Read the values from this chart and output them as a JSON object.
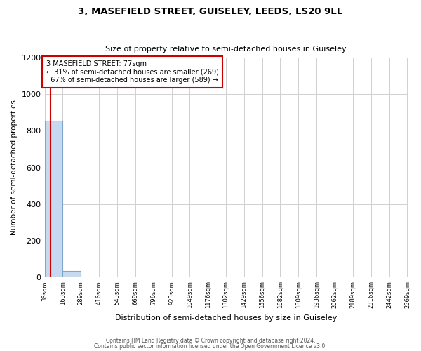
{
  "title": "3, MASEFIELD STREET, GUISELEY, LEEDS, LS20 9LL",
  "subtitle": "Size of property relative to semi-detached houses in Guiseley",
  "xlabel": "Distribution of semi-detached houses by size in Guiseley",
  "ylabel": "Number of semi-detached properties",
  "bin_edges": [
    36,
    163,
    289,
    416,
    543,
    669,
    796,
    923,
    1049,
    1176,
    1302,
    1429,
    1556,
    1682,
    1809,
    1936,
    2062,
    2189,
    2316,
    2442,
    2569
  ],
  "bar_heights": [
    855,
    35,
    0,
    0,
    0,
    0,
    0,
    0,
    0,
    0,
    0,
    0,
    0,
    0,
    0,
    0,
    0,
    0,
    0,
    0
  ],
  "bar_color": "#c6d9f0",
  "bar_edge_color": "#7da6c8",
  "property_size": 77,
  "property_label": "3 MASEFIELD STREET: 77sqm",
  "pct_smaller": 31,
  "pct_larger": 67,
  "n_smaller": 269,
  "n_larger": 589,
  "marker_color": "#cc0000",
  "ylim": [
    0,
    1200
  ],
  "yticks": [
    0,
    200,
    400,
    600,
    800,
    1000,
    1200
  ],
  "footnote1": "Contains HM Land Registry data © Crown copyright and database right 2024.",
  "footnote2": "Contains public sector information licensed under the Open Government Licence v3.0.",
  "background_color": "#ffffff",
  "grid_color": "#d0d0d0"
}
